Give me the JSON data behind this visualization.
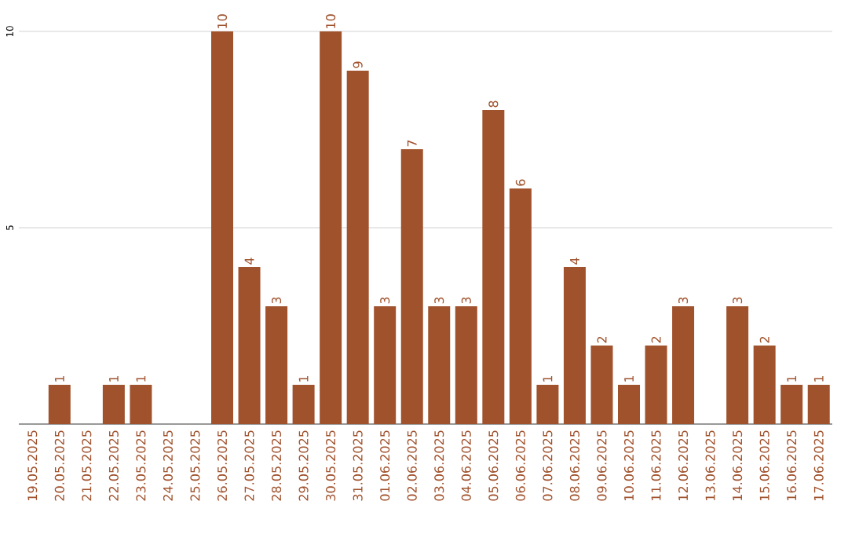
{
  "chart_data": {
    "type": "bar",
    "categories": [
      "19.05.2025",
      "20.05.2025",
      "21.05.2025",
      "22.05.2025",
      "23.05.2025",
      "24.05.2025",
      "25.05.2025",
      "26.05.2025",
      "27.05.2025",
      "28.05.2025",
      "29.05.2025",
      "30.05.2025",
      "31.05.2025",
      "01.06.2025",
      "02.06.2025",
      "03.06.2025",
      "04.06.2025",
      "05.06.2025",
      "06.06.2025",
      "07.06.2025",
      "08.06.2025",
      "09.06.2025",
      "10.06.2025",
      "11.06.2025",
      "12.06.2025",
      "13.06.2025",
      "14.06.2025",
      "15.06.2025",
      "16.06.2025",
      "17.06.2025"
    ],
    "values": [
      0,
      1,
      0,
      1,
      1,
      0,
      0,
      10,
      4,
      3,
      1,
      10,
      9,
      3,
      7,
      3,
      3,
      8,
      6,
      1,
      4,
      2,
      1,
      2,
      3,
      0,
      3,
      2,
      1,
      1
    ],
    "value_labels": [
      null,
      "1",
      null,
      "1",
      "1",
      null,
      null,
      "10",
      "4",
      "3",
      "1",
      "10",
      "9",
      "3",
      "7",
      "3",
      "3",
      "8",
      "6",
      "1",
      "4",
      "2",
      "1",
      "2",
      "3",
      null,
      "3",
      "2",
      "1",
      "1"
    ],
    "color": "#a0522d",
    "ylim": [
      0,
      10
    ],
    "yticks": [
      5,
      10
    ],
    "grid": "y"
  }
}
